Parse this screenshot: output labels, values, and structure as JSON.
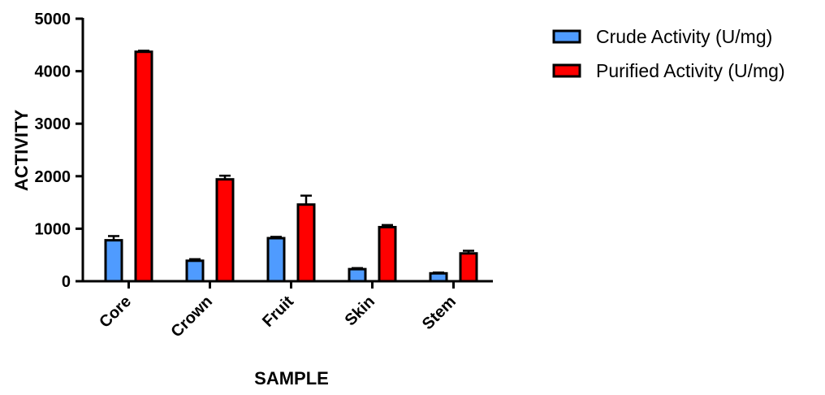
{
  "chart_data": {
    "type": "bar",
    "title": "",
    "xlabel": "SAMPLE",
    "ylabel": "ACTIVITY",
    "categories": [
      "Core",
      "Crown",
      "Fruit",
      "Skin",
      "Stem"
    ],
    "ylim": [
      0,
      5000
    ],
    "yticks": [
      0,
      1000,
      2000,
      3000,
      4000,
      5000
    ],
    "ytick_labels": [
      "0",
      "1000",
      "2000",
      "3000",
      "4000",
      "5000"
    ],
    "grid": false,
    "error_bars": true,
    "legend_position": "top-right",
    "series": [
      {
        "name": "Crude Activity (U/mg)",
        "color": "#4f9bff",
        "values": [
          780,
          390,
          820,
          230,
          150
        ],
        "errors": [
          80,
          30,
          25,
          20,
          15
        ]
      },
      {
        "name": "Purified Activity (U/mg)",
        "color": "#ff0000",
        "values": [
          4370,
          1940,
          1460,
          1030,
          530
        ],
        "errors": [
          20,
          70,
          170,
          40,
          50
        ]
      }
    ]
  }
}
